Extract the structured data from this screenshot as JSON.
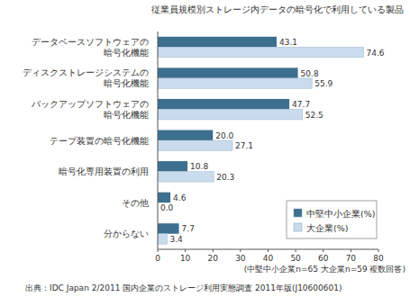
{
  "chart_data": {
    "type": "bar",
    "orientation": "horizontal",
    "title": "従業員規模別ストレージ内データの暗号化で利用している製品",
    "categories": [
      "データベースソフトウェアの\n暗号化機能",
      "ディスクストレージシステムの\n暗号化機能",
      "バックアップソフトウェアの\n暗号化機能",
      "テープ装置の暗号化機能",
      "暗号化専用装置の利用",
      "その他",
      "分からない"
    ],
    "series": [
      {
        "name": "中堅中小企業(%)",
        "color": "#3d6f8e",
        "values": [
          43.1,
          50.8,
          47.7,
          20.0,
          10.8,
          4.6,
          7.7
        ],
        "value_labels": [
          "43.1",
          "50.8",
          "47.7",
          "20.0",
          "10.8",
          "4.6",
          "7.7"
        ]
      },
      {
        "name": "大企業(%)",
        "color": "#c9dced",
        "values": [
          74.6,
          55.9,
          52.5,
          27.1,
          20.3,
          0.0,
          3.4
        ],
        "value_labels": [
          "74.6",
          "55.9",
          "52.5",
          "27.1",
          "20.3",
          "0.0",
          "3.4"
        ]
      }
    ],
    "xlim": [
      0,
      80
    ],
    "xticks": [
      0,
      10,
      20,
      30,
      40,
      50,
      60,
      70,
      80
    ],
    "grid": false,
    "legend": "lower right",
    "data_labels": true,
    "note": "(中堅中小企業n=65 大企業n=59 複数回答)",
    "source": "出典：IDC Japan 2/2011 国内企業のストレージ利用実態調査 2011年版(J10600601)"
  }
}
